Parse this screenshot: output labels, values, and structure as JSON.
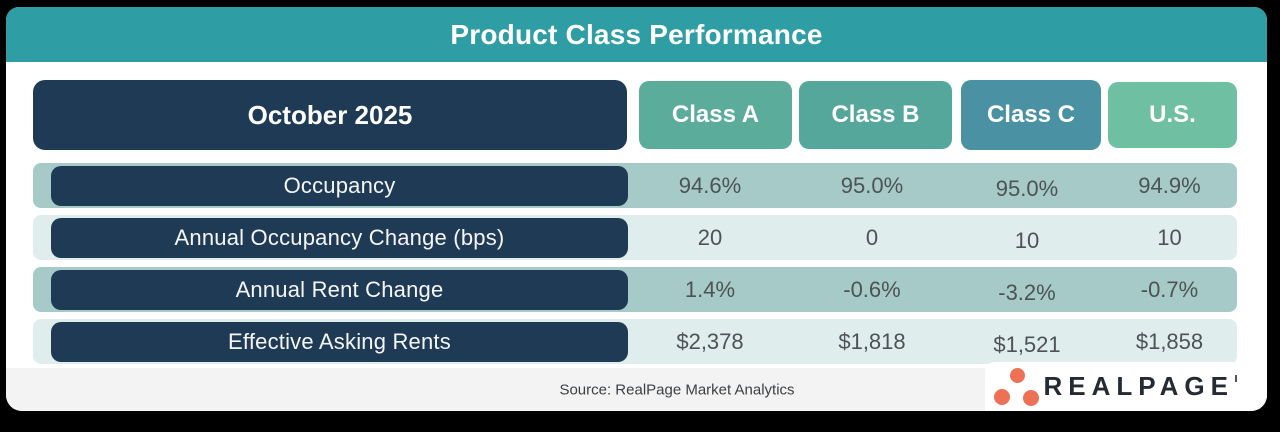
{
  "title": "Product Class Performance",
  "chart_data": {
    "type": "table",
    "title": "Product Class Performance",
    "period": "October 2025",
    "columns": [
      "Class A",
      "Class B",
      "Class C",
      "U.S."
    ],
    "rows": [
      {
        "metric": "Occupancy",
        "values": [
          "94.6%",
          "95.0%",
          "95.0%",
          "94.9%"
        ]
      },
      {
        "metric": "Annual Occupancy Change (bps)",
        "values": [
          "20",
          "0",
          "10",
          "10"
        ]
      },
      {
        "metric": "Annual Rent Change",
        "values": [
          "1.4%",
          "-0.6%",
          "-3.2%",
          "-0.7%"
        ]
      },
      {
        "metric": "Effective Asking Rents",
        "values": [
          "$2,378",
          "$1,818",
          "$1,521",
          "$1,858"
        ]
      }
    ]
  },
  "footer": {
    "source": "Source: RealPage Market Analytics",
    "logo_text": "REALPAGE"
  },
  "colors": {
    "title_bar": "#2F9DA4",
    "navy_pill": "#1F3A55",
    "class_a_header": "#5CAC9B",
    "class_b_header": "#55A79C",
    "class_c_header": "#4A92A3",
    "us_header": "#6FBFA3",
    "row_band_dark": "#A6CAC8",
    "row_band_light": "#DFEEEC",
    "value_text": "#4D5257",
    "footer_bg": "#F3F3F4",
    "logo_coral": "#ED7155",
    "logo_dark": "#242B33"
  }
}
